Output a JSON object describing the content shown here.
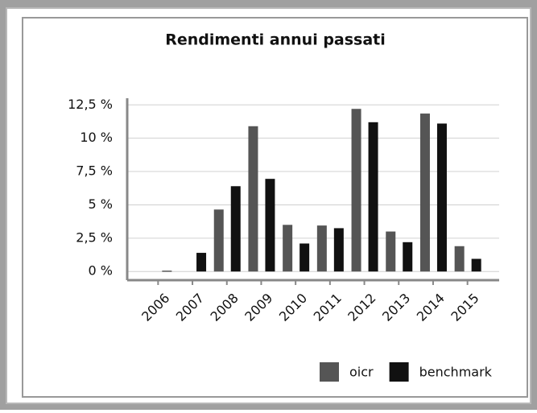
{
  "chart_data": {
    "type": "bar",
    "title": "Rendimenti annui passati",
    "categories": [
      "2006",
      "2007",
      "2008",
      "2009",
      "2010",
      "2011",
      "2012",
      "2013",
      "2014",
      "2015"
    ],
    "series": [
      {
        "name": "oicr",
        "color": "#555555",
        "values": [
          null,
          null,
          4.65,
          10.9,
          3.5,
          3.45,
          12.2,
          3.0,
          11.85,
          1.9
        ]
      },
      {
        "name": "benchmark",
        "color": "#111111",
        "values": [
          0.05,
          1.4,
          6.4,
          6.95,
          2.1,
          3.25,
          11.2,
          2.2,
          11.1,
          0.95
        ]
      }
    ],
    "ylim": [
      -0.65,
      13
    ],
    "yticks": [
      {
        "value": 0,
        "label": "0 %"
      },
      {
        "value": 2.5,
        "label": "2,5 %"
      },
      {
        "value": 5,
        "label": "5 %"
      },
      {
        "value": 7.5,
        "label": "7,5 %"
      },
      {
        "value": 10,
        "label": "10 %"
      },
      {
        "value": 12.5,
        "label": "12,5 %"
      }
    ],
    "grid": true,
    "legend": "bottom-right"
  }
}
